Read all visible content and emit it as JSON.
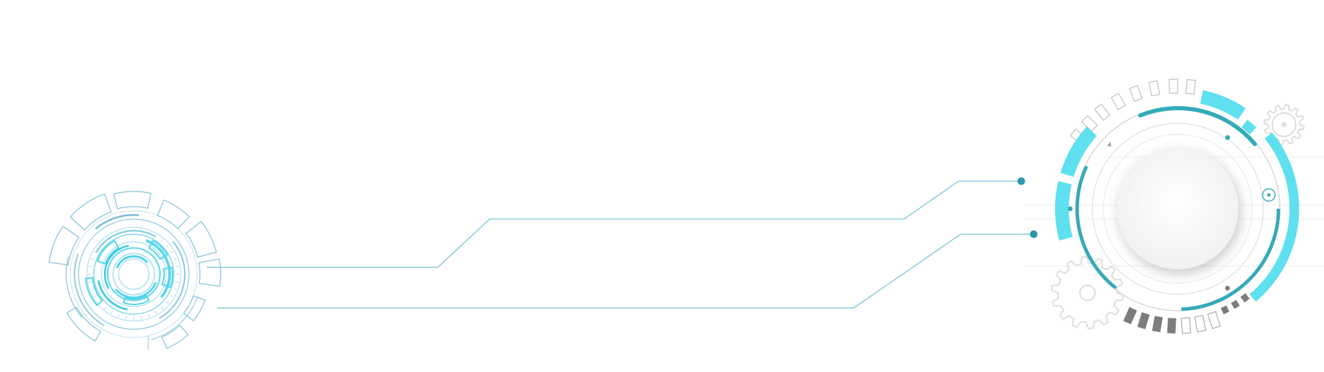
{
  "colors": {
    "background": "#ffffff",
    "connector_line": "#8ccbdc",
    "connector_dot": "#2a98aa",
    "accent_cyan": "#5fe0ee",
    "accent_teal": "#35aab8",
    "ring_gray": "#d6d6d6",
    "dark_gray": "#7d7d7d",
    "gear_gray": "#e2e2e2",
    "hub_fill": "#f7f7f7"
  },
  "icons": {
    "left_dial": "concentric-dial-icon",
    "right_dial": "radial-gauge-icon",
    "gear_small": "gear-icon",
    "gear_large": "gear-icon",
    "target": "target-icon"
  }
}
